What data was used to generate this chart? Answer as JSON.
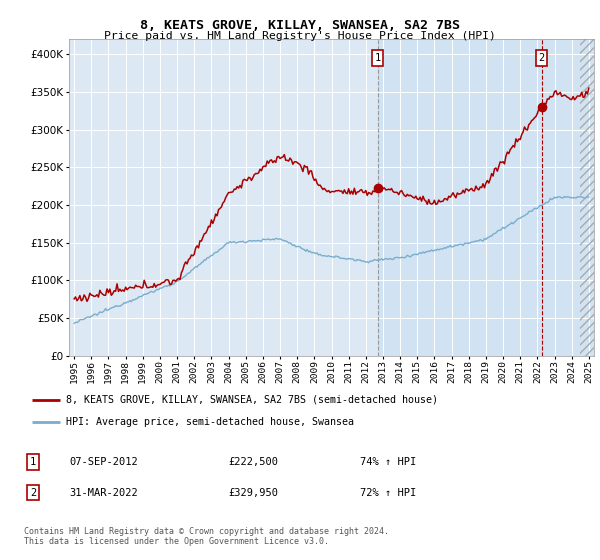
{
  "title1": "8, KEATS GROVE, KILLAY, SWANSEA, SA2 7BS",
  "title2": "Price paid vs. HM Land Registry's House Price Index (HPI)",
  "ylim": [
    0,
    420000
  ],
  "xlim_start": 1994.7,
  "xlim_end": 2025.3,
  "plot_bg_color": "#dce9f5",
  "plot_bg_color2": "#c8ddf0",
  "grid_color": "#ffffff",
  "red_color": "#aa0000",
  "blue_color": "#7aadcc",
  "hatch_color": "#c0d0e0",
  "marker1_x": 2012.69,
  "marker1_y": 222500,
  "marker2_x": 2022.25,
  "marker2_y": 329950,
  "legend_line1": "8, KEATS GROVE, KILLAY, SWANSEA, SA2 7BS (semi-detached house)",
  "legend_line2": "HPI: Average price, semi-detached house, Swansea",
  "table_row1": [
    "1",
    "07-SEP-2012",
    "£222,500",
    "74% ↑ HPI"
  ],
  "table_row2": [
    "2",
    "31-MAR-2022",
    "£329,950",
    "72% ↑ HPI"
  ],
  "footer": "Contains HM Land Registry data © Crown copyright and database right 2024.\nThis data is licensed under the Open Government Licence v3.0.",
  "yticks": [
    0,
    50000,
    100000,
    150000,
    200000,
    250000,
    300000,
    350000,
    400000
  ],
  "ytick_labels": [
    "£0",
    "£50K",
    "£100K",
    "£150K",
    "£200K",
    "£250K",
    "£300K",
    "£350K",
    "£400K"
  ]
}
